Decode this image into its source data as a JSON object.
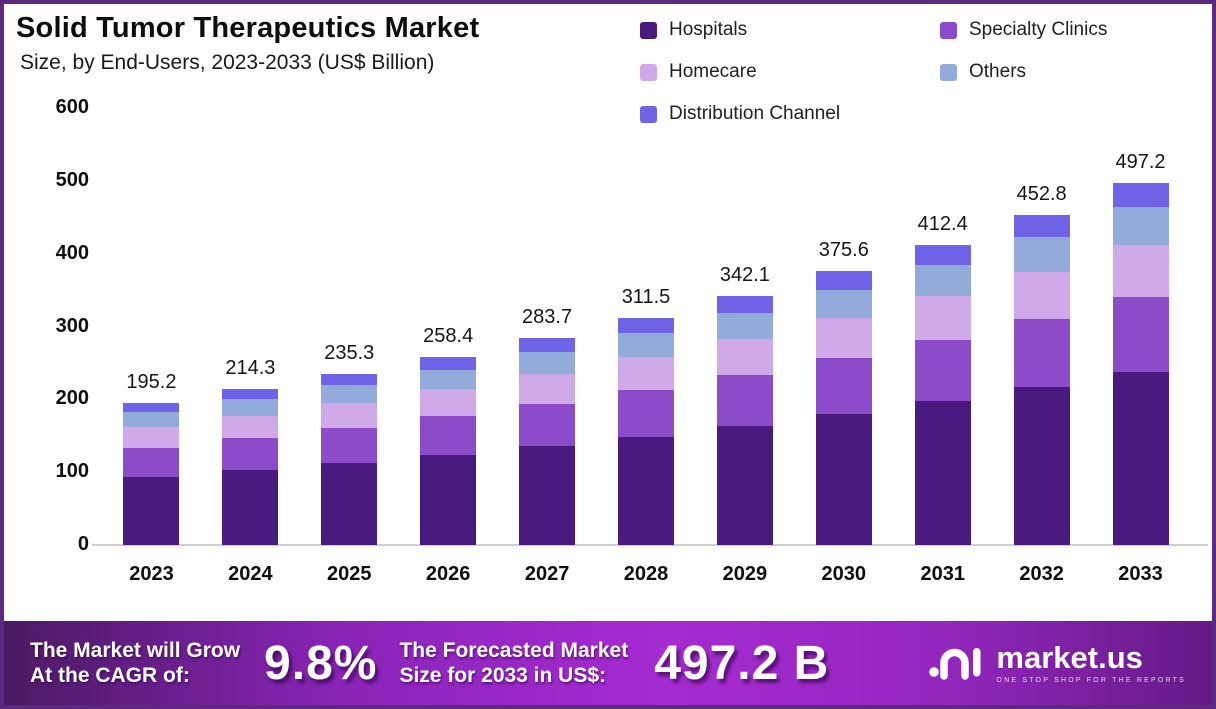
{
  "header": {
    "title": "Solid Tumor Therapeutics Market",
    "subtitle": "Size, by End-Users, 2023-2033 (US$ Billion)"
  },
  "legend": {
    "items": [
      {
        "label": "Hospitals",
        "color": "#4a1a7f"
      },
      {
        "label": "Specialty Clinics",
        "color": "#8c4bc9"
      },
      {
        "label": "Homecare",
        "color": "#d0a9e8"
      },
      {
        "label": "Others",
        "color": "#92abdb"
      },
      {
        "label": "Distribution Channel",
        "color": "#6f63e8"
      }
    ]
  },
  "chart_data": {
    "type": "bar",
    "stacked": true,
    "title": "Solid Tumor Therapeutics Market Size, by End-Users, 2023-2033 (US$ Billion)",
    "xlabel": "",
    "ylabel": "US$ Billion",
    "grid": false,
    "legend_position": "top-right",
    "categories": [
      "2023",
      "2024",
      "2025",
      "2026",
      "2027",
      "2028",
      "2029",
      "2030",
      "2031",
      "2032",
      "2033"
    ],
    "totals": [
      195.2,
      214.3,
      235.3,
      258.4,
      283.7,
      311.5,
      342.1,
      375.6,
      412.4,
      452.8,
      497.2
    ],
    "total_labels": [
      "195.2",
      "214.3",
      "235.3",
      "258.4",
      "283.7",
      "311.5",
      "342.1",
      "375.6",
      "412.4",
      "452.8",
      "497.2"
    ],
    "series": [
      {
        "name": "Hospitals",
        "color": "#4a1a7f",
        "values": [
          93.3,
          102.4,
          112.5,
          123.5,
          135.6,
          148.9,
          163.5,
          179.5,
          197.1,
          216.4,
          237.7
        ]
      },
      {
        "name": "Specialty Clinics",
        "color": "#8c4bc9",
        "values": [
          40.2,
          44.1,
          48.5,
          53.2,
          58.4,
          64.2,
          70.5,
          77.4,
          85.0,
          93.3,
          102.4
        ]
      },
      {
        "name": "Homecare",
        "color": "#d0a9e8",
        "values": [
          28.3,
          31.1,
          34.1,
          37.5,
          41.1,
          45.2,
          49.6,
          54.5,
          59.8,
          65.7,
          72.1
        ]
      },
      {
        "name": "Others",
        "color": "#92abdb",
        "values": [
          20.3,
          22.3,
          24.5,
          26.9,
          29.5,
          32.4,
          35.6,
          39.1,
          42.9,
          47.1,
          51.7
        ]
      },
      {
        "name": "Distribution Channel",
        "color": "#6f63e8",
        "values": [
          13.1,
          14.4,
          15.7,
          17.3,
          19.1,
          20.8,
          22.9,
          25.1,
          27.6,
          30.3,
          33.3
        ]
      }
    ],
    "y_axis": {
      "min": 0,
      "max": 600,
      "ticks": [
        600,
        500,
        400,
        300,
        200,
        100,
        0
      ]
    }
  },
  "banner": {
    "cagr_label_line1": "The Market will Grow",
    "cagr_label_line2": "At the CAGR of:",
    "cagr_value": "9.8%",
    "forecast_label_line1": "The Forecasted Market",
    "forecast_label_line2": "Size for 2033 in US$:",
    "forecast_value": "497.2 B",
    "brand": {
      "name": "market.us",
      "tagline": "ONE STOP SHOP FOR THE REPORTS"
    }
  }
}
